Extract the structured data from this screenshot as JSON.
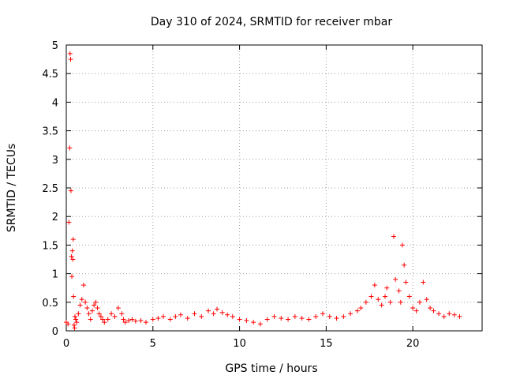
{
  "chart_data": {
    "type": "scatter",
    "title": "Day 310 of 2024, SRMTID for receiver mbar",
    "xlabel": "GPS time / hours",
    "ylabel": "SRMTID / TECUs",
    "xlim": [
      0,
      24
    ],
    "ylim": [
      0,
      5
    ],
    "xticks": [
      0,
      5,
      10,
      15,
      20
    ],
    "yticks": [
      0,
      0.5,
      1,
      1.5,
      2,
      2.5,
      3,
      3.5,
      4,
      4.5,
      5
    ],
    "xtick_labels": [
      "0",
      "5",
      "10",
      "15",
      "20"
    ],
    "ytick_labels": [
      "0",
      "0.5",
      "1",
      "1.5",
      "2",
      "2.5",
      "3",
      "3.5",
      "4",
      "4.5",
      "5"
    ],
    "grid": true,
    "marker": "+",
    "color": "#ff0000",
    "series": [
      {
        "name": "SRMTID",
        "x": [
          0.0,
          0.1,
          0.15,
          0.2,
          0.22,
          0.25,
          0.27,
          0.3,
          0.32,
          0.35,
          0.38,
          0.4,
          0.42,
          0.45,
          0.48,
          0.5,
          0.55,
          0.6,
          0.7,
          0.8,
          0.9,
          1.0,
          1.1,
          1.2,
          1.3,
          1.4,
          1.5,
          1.6,
          1.7,
          1.8,
          1.9,
          2.0,
          2.1,
          2.2,
          2.4,
          2.6,
          2.8,
          3.0,
          3.2,
          3.3,
          3.4,
          3.6,
          3.8,
          4.0,
          4.3,
          4.6,
          5.0,
          5.3,
          5.6,
          6.0,
          6.3,
          6.6,
          7.0,
          7.4,
          7.8,
          8.2,
          8.5,
          8.7,
          9.0,
          9.3,
          9.6,
          10.0,
          10.4,
          10.8,
          11.2,
          11.6,
          12.0,
          12.4,
          12.8,
          13.2,
          13.6,
          14.0,
          14.4,
          14.8,
          15.2,
          15.6,
          16.0,
          16.4,
          16.8,
          17.0,
          17.3,
          17.6,
          17.8,
          18.0,
          18.2,
          18.4,
          18.5,
          18.7,
          18.9,
          19.0,
          19.2,
          19.3,
          19.4,
          19.5,
          19.6,
          19.8,
          20.0,
          20.2,
          20.4,
          20.6,
          20.8,
          21.0,
          21.2,
          21.5,
          21.8,
          22.1,
          22.4,
          22.7
        ],
        "y": [
          0.15,
          0.12,
          1.9,
          3.2,
          4.85,
          4.75,
          2.45,
          1.3,
          0.95,
          1.4,
          1.25,
          1.6,
          0.6,
          0.1,
          0.05,
          0.25,
          0.2,
          0.15,
          0.3,
          0.45,
          0.55,
          0.8,
          0.5,
          0.4,
          0.3,
          0.2,
          0.35,
          0.45,
          0.5,
          0.4,
          0.3,
          0.25,
          0.2,
          0.15,
          0.2,
          0.3,
          0.25,
          0.4,
          0.3,
          0.2,
          0.15,
          0.18,
          0.2,
          0.17,
          0.18,
          0.15,
          0.2,
          0.22,
          0.25,
          0.2,
          0.25,
          0.28,
          0.22,
          0.3,
          0.25,
          0.35,
          0.3,
          0.38,
          0.32,
          0.28,
          0.25,
          0.2,
          0.18,
          0.15,
          0.12,
          0.2,
          0.25,
          0.22,
          0.2,
          0.25,
          0.22,
          0.2,
          0.25,
          0.3,
          0.25,
          0.22,
          0.25,
          0.3,
          0.35,
          0.4,
          0.5,
          0.6,
          0.8,
          0.55,
          0.45,
          0.6,
          0.75,
          0.5,
          1.65,
          0.9,
          0.7,
          0.5,
          1.5,
          1.15,
          0.85,
          0.6,
          0.4,
          0.35,
          0.5,
          0.85,
          0.55,
          0.4,
          0.35,
          0.3,
          0.25,
          0.3,
          0.28,
          0.25
        ]
      }
    ]
  }
}
